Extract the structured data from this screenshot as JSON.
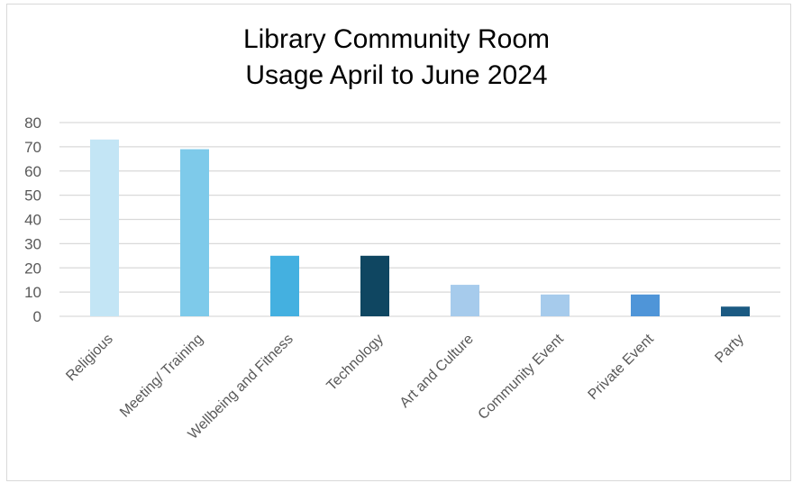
{
  "chart_data": {
    "type": "bar",
    "title": "Library Community Room\nUsage April to June 2024",
    "categories": [
      "Religious",
      "Meeting/ Training",
      "Wellbeing and Fitness",
      "Technology",
      "Art and Culture",
      "Community Event",
      "Private Event",
      "Party"
    ],
    "values": [
      73,
      69,
      25,
      25,
      13,
      9,
      9,
      4
    ],
    "colors": [
      "#c3e5f5",
      "#7ecaea",
      "#44b0e0",
      "#0f4661",
      "#a6cbec",
      "#a6cbec",
      "#4f95d8",
      "#1b5a82"
    ],
    "ylim": [
      0,
      80
    ],
    "yticks": [
      0,
      10,
      20,
      30,
      40,
      50,
      60,
      70,
      80
    ],
    "xlabel": "",
    "ylabel": "",
    "grid": true,
    "legend": "none"
  }
}
